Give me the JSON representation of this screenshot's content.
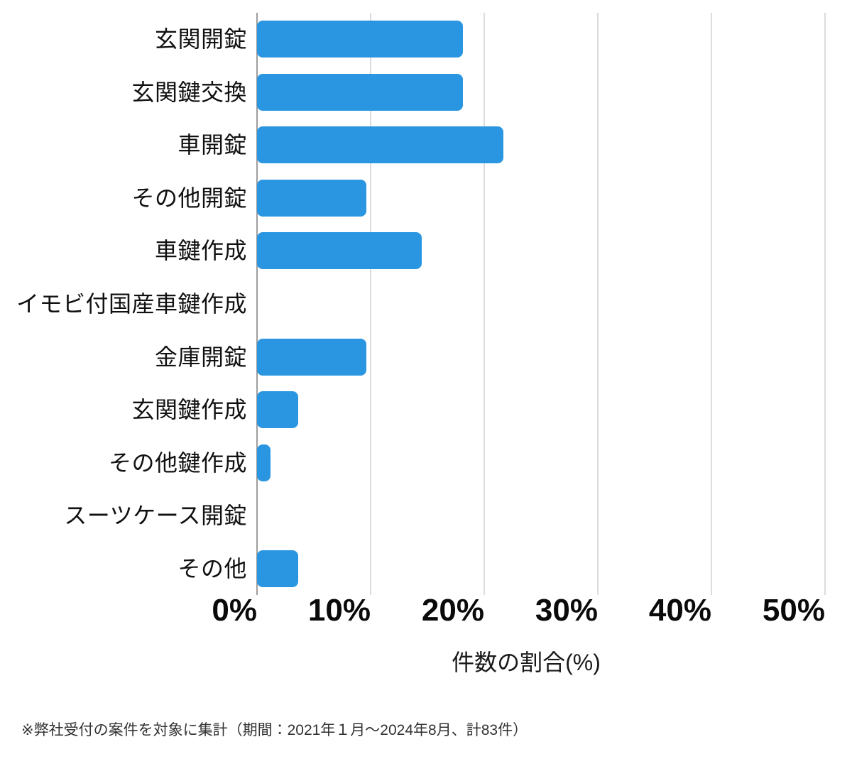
{
  "chart_data": {
    "type": "bar",
    "orientation": "horizontal",
    "categories": [
      "玄関開錠",
      "玄関鍵交換",
      "車開錠",
      "その他開錠",
      "車鍵作成",
      "イモビ付国産車鍵作成",
      "金庫開錠",
      "玄関鍵作成",
      "その他鍵作成",
      "スーツケース開錠",
      "その他"
    ],
    "values": [
      18.1,
      18.1,
      21.7,
      9.6,
      14.5,
      0,
      9.6,
      3.6,
      1.2,
      0,
      3.6
    ],
    "value_unit": "%",
    "xlabel": "件数の割合(%)",
    "xlim": [
      0,
      50
    ],
    "x_ticks": [
      "0%",
      "10%",
      "20%",
      "30%",
      "40%",
      "50%"
    ],
    "grid": true,
    "legend_position": "none",
    "title": ""
  },
  "footnote": "※弊社受付の案件を対象に集計（期間：2021年１月～2024年8月、計83件）",
  "colors": {
    "bar": "#2A96E1",
    "gridline": "#DCDCDC",
    "zero_line": "#9D9D9D",
    "text": "#111111",
    "footnote_text": "#333333"
  }
}
